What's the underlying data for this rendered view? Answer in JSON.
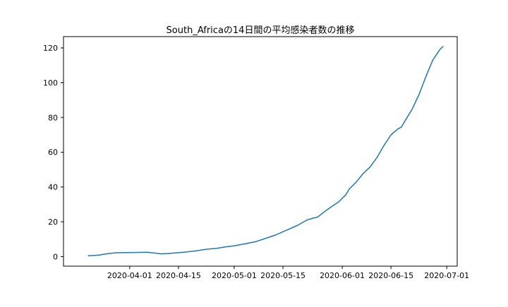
{
  "chart_data": {
    "type": "line",
    "title": "South_Africaの14日間の平均感染者数の推移",
    "xlabel": "",
    "ylabel": "",
    "x_ticks": [
      "2020-04-01",
      "2020-04-15",
      "2020-05-01",
      "2020-05-15",
      "2020-06-01",
      "2020-06-15",
      "2020-07-01"
    ],
    "y_ticks": [
      0,
      20,
      40,
      60,
      80,
      100,
      120
    ],
    "xlim": [
      "2020-03-13",
      "2020-07-04"
    ],
    "ylim": [
      -5.5,
      126.5
    ],
    "grid": false,
    "line_color": "#1f77b4",
    "series": [
      {
        "x": [
          "2020-03-20",
          "2020-03-23",
          "2020-03-26",
          "2020-03-28",
          "2020-03-31",
          "2020-04-03",
          "2020-04-06",
          "2020-04-08",
          "2020-04-10",
          "2020-04-12",
          "2020-04-14",
          "2020-04-17",
          "2020-04-20",
          "2020-04-23",
          "2020-04-26",
          "2020-04-29",
          "2020-05-01",
          "2020-05-04",
          "2020-05-07",
          "2020-05-10",
          "2020-05-13",
          "2020-05-16",
          "2020-05-19",
          "2020-05-22",
          "2020-05-25",
          "2020-05-27",
          "2020-05-29",
          "2020-05-31",
          "2020-06-02",
          "2020-06-03",
          "2020-06-05",
          "2020-06-07",
          "2020-06-09",
          "2020-06-11",
          "2020-06-13",
          "2020-06-15",
          "2020-06-17",
          "2020-06-18",
          "2020-06-19",
          "2020-06-21",
          "2020-06-23",
          "2020-06-25",
          "2020-06-27",
          "2020-06-28",
          "2020-06-29",
          "2020-06-30"
        ],
        "values": [
          0.5,
          0.8,
          1.8,
          2.2,
          2.3,
          2.4,
          2.5,
          2.1,
          1.6,
          1.8,
          2.1,
          2.6,
          3.3,
          4.2,
          4.8,
          5.7,
          6.2,
          7.3,
          8.5,
          10.5,
          12.5,
          15.2,
          17.8,
          21.2,
          22.8,
          26.0,
          28.8,
          31.5,
          35.5,
          38.8,
          42.8,
          47.8,
          51.5,
          57.0,
          64.0,
          70.0,
          73.5,
          74.5,
          78.0,
          84.5,
          93.0,
          103.5,
          113.0,
          116.0,
          119.0,
          121.0
        ]
      }
    ]
  }
}
